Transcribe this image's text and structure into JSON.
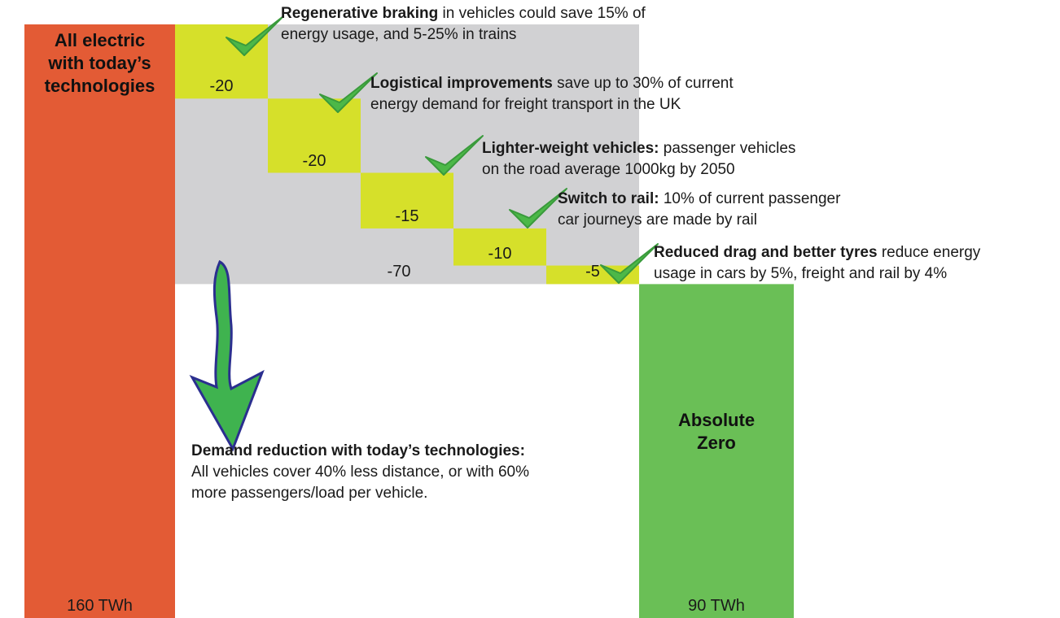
{
  "chart_data": {
    "type": "waterfall",
    "start": {
      "label": "All electric with today’s technologies",
      "value": 160,
      "value_label": "160 TWh",
      "color": "#e35b35"
    },
    "end": {
      "label": "Absolute Zero",
      "value": 90,
      "value_label": "90 TWh",
      "color": "#6abf56"
    },
    "steps": [
      {
        "value": -20,
        "title": "Regenerative braking",
        "lines": [
          "in vehicles could save 15% of",
          "energy usage, and 5-25% in trains"
        ]
      },
      {
        "value": -20,
        "title": "Logistical improvements",
        "lines": [
          "save up to 30% of current",
          "energy demand for freight transport in the UK"
        ]
      },
      {
        "value": -15,
        "title": "Lighter-weight vehicles:",
        "lines": [
          "passenger vehicles",
          "on the road average 1000kg by 2050"
        ]
      },
      {
        "value": -10,
        "title": "Switch to rail:",
        "lines": [
          "10% of current passenger",
          "car journeys are made by rail"
        ]
      },
      {
        "value": -5,
        "title": "Reduced drag and better tyres",
        "lines": [
          "reduce energy",
          "usage in cars by 5%, freight and rail by 4%"
        ]
      }
    ],
    "step_color": "#d6e02a",
    "total_reduction": {
      "value": -70,
      "color": "#d1d1d3",
      "title": "Demand reduction with today’s technologies:",
      "lines": [
        "All vehicles cover 40% less distance, or with 60%",
        "more passengers/load per vehicle."
      ]
    }
  }
}
